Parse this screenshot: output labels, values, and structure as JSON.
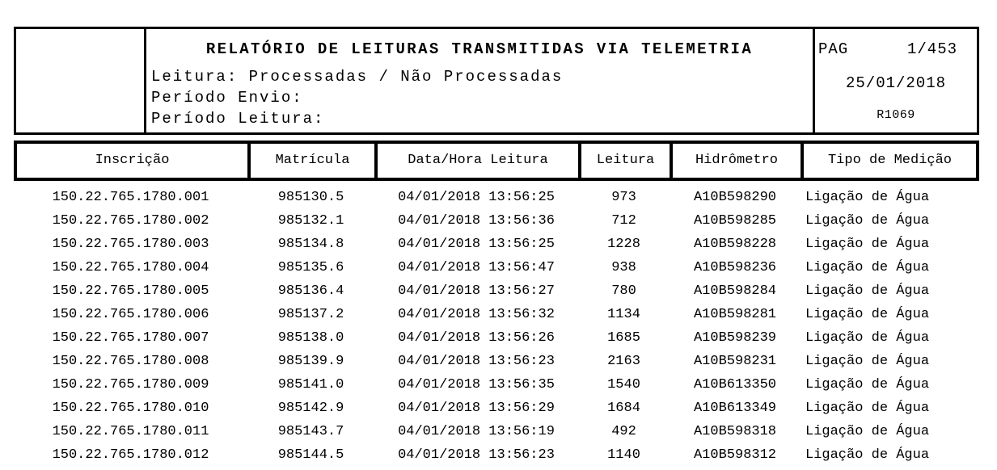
{
  "report_header": {
    "title": "RELATÓRIO DE LEITURAS TRANSMITIDAS VIA TELEMETRIA",
    "line1": "Leitura: Processadas / Não Processadas",
    "line2": "Período Envio:",
    "line3": "Período Leitura:"
  },
  "page_box": {
    "pag_label": "PAG",
    "page_number": "1/453",
    "date": "25/01/2018",
    "report_code": "R1069"
  },
  "table": {
    "columns": [
      "Inscrição",
      "Matrícula",
      "Data/Hora Leitura",
      "Leitura",
      "Hidrômetro",
      "Tipo de Medição"
    ],
    "rows": [
      [
        "150.22.765.1780.001",
        "985130.5",
        "04/01/2018 13:56:25",
        "973",
        "A10B598290",
        "Ligação de Água"
      ],
      [
        "150.22.765.1780.002",
        "985132.1",
        "04/01/2018 13:56:36",
        "712",
        "A10B598285",
        "Ligação de Água"
      ],
      [
        "150.22.765.1780.003",
        "985134.8",
        "04/01/2018 13:56:25",
        "1228",
        "A10B598228",
        "Ligação de Água"
      ],
      [
        "150.22.765.1780.004",
        "985135.6",
        "04/01/2018 13:56:47",
        "938",
        "A10B598236",
        "Ligação de Água"
      ],
      [
        "150.22.765.1780.005",
        "985136.4",
        "04/01/2018 13:56:27",
        "780",
        "A10B598284",
        "Ligação de Água"
      ],
      [
        "150.22.765.1780.006",
        "985137.2",
        "04/01/2018 13:56:32",
        "1134",
        "A10B598281",
        "Ligação de Água"
      ],
      [
        "150.22.765.1780.007",
        "985138.0",
        "04/01/2018 13:56:26",
        "1685",
        "A10B598239",
        "Ligação de Água"
      ],
      [
        "150.22.765.1780.008",
        "985139.9",
        "04/01/2018 13:56:23",
        "2163",
        "A10B598231",
        "Ligação de Água"
      ],
      [
        "150.22.765.1780.009",
        "985141.0",
        "04/01/2018 13:56:35",
        "1540",
        "A10B613350",
        "Ligação de Água"
      ],
      [
        "150.22.765.1780.010",
        "985142.9",
        "04/01/2018 13:56:29",
        "1684",
        "A10B613349",
        "Ligação de Água"
      ],
      [
        "150.22.765.1780.011",
        "985143.7",
        "04/01/2018 13:56:19",
        "492",
        "A10B598318",
        "Ligação de Água"
      ],
      [
        "150.22.765.1780.012",
        "985144.5",
        "04/01/2018 13:56:23",
        "1140",
        "A10B598312",
        "Ligação de Água"
      ]
    ]
  },
  "colors": {
    "text": "#000000",
    "background": "#ffffff",
    "border": "#000000"
  }
}
